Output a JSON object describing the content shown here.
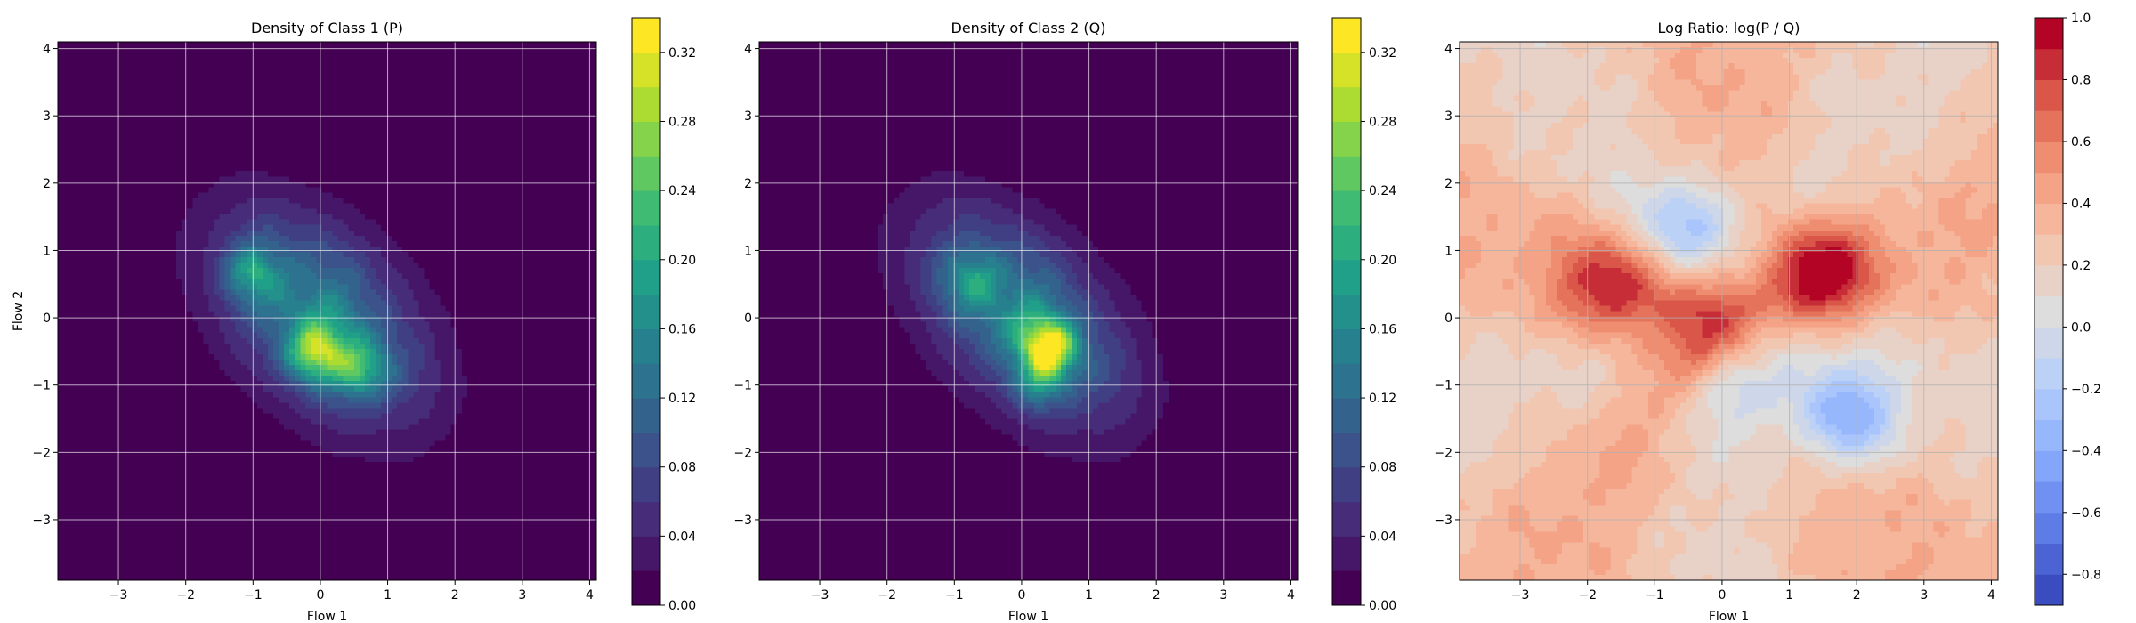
{
  "chart_data": [
    {
      "type": "heatmap",
      "title": "Density of Class 1 (P)",
      "xlabel": "Flow 1",
      "ylabel": "Flow 2",
      "xlim": [
        -3.9,
        4.1
      ],
      "ylim": [
        -3.9,
        4.1
      ],
      "xticks": [
        -3,
        -2,
        -1,
        0,
        1,
        2,
        3,
        4
      ],
      "yticks": [
        -3,
        -2,
        -1,
        0,
        1,
        2,
        3,
        4
      ],
      "grid": true,
      "colormap": "viridis",
      "colorbar": {
        "min": 0.0,
        "max": 0.34,
        "ticks": [
          0.0,
          0.04,
          0.08,
          0.12,
          0.16,
          0.2,
          0.24,
          0.28,
          0.32
        ],
        "tick_labels": [
          "0.00",
          "0.04",
          "0.08",
          "0.12",
          "0.16",
          "0.20",
          "0.24",
          "0.28",
          "0.32"
        ]
      },
      "distribution": {
        "center": [
          0.0,
          0.0
        ],
        "spread": [
          1.05,
          1.05
        ],
        "correlation": -0.45,
        "peaks": [
          {
            "x": -0.1,
            "y": -0.55,
            "value": 0.3
          },
          {
            "x": -1.0,
            "y": 0.7,
            "value": 0.22
          },
          {
            "x": 0.6,
            "y": -0.8,
            "value": 0.24
          }
        ]
      }
    },
    {
      "type": "heatmap",
      "title": "Density of Class 2 (Q)",
      "xlabel": "Flow 1",
      "ylabel": "",
      "xlim": [
        -3.9,
        4.1
      ],
      "ylim": [
        -3.9,
        4.1
      ],
      "xticks": [
        -3,
        -2,
        -1,
        0,
        1,
        2,
        3,
        4
      ],
      "yticks": [
        -3,
        -2,
        -1,
        0,
        1,
        2,
        3,
        4
      ],
      "grid": true,
      "colormap": "viridis",
      "colorbar": {
        "min": 0.0,
        "max": 0.34,
        "ticks": [
          0.0,
          0.04,
          0.08,
          0.12,
          0.16,
          0.2,
          0.24,
          0.28,
          0.32
        ],
        "tick_labels": [
          "0.00",
          "0.04",
          "0.08",
          "0.12",
          "0.16",
          "0.20",
          "0.24",
          "0.28",
          "0.32"
        ]
      },
      "distribution": {
        "center": [
          0.0,
          0.0
        ],
        "spread": [
          1.05,
          1.05
        ],
        "correlation": -0.5,
        "peaks": [
          {
            "x": 0.4,
            "y": -0.4,
            "value": 0.3
          },
          {
            "x": -0.7,
            "y": 0.6,
            "value": 0.2
          },
          {
            "x": 0.3,
            "y": -0.9,
            "value": 0.22
          }
        ]
      }
    },
    {
      "type": "heatmap",
      "title": "Log Ratio: log(P / Q)",
      "xlabel": "Flow 1",
      "ylabel": "",
      "xlim": [
        -3.9,
        4.1
      ],
      "ylim": [
        -3.9,
        4.1
      ],
      "xticks": [
        -3,
        -2,
        -1,
        0,
        1,
        2,
        3,
        4
      ],
      "yticks": [
        -3,
        -2,
        -1,
        0,
        1,
        2,
        3,
        4
      ],
      "grid": true,
      "colormap": "coolwarm",
      "colorbar": {
        "min": -0.9,
        "max": 1.0,
        "ticks": [
          -0.8,
          -0.6,
          -0.4,
          -0.2,
          0.0,
          0.2,
          0.4,
          0.6,
          0.8,
          1.0
        ],
        "tick_labels": [
          "−0.8",
          "−0.6",
          "−0.4",
          "−0.2",
          "0.0",
          "0.2",
          "0.4",
          "0.6",
          "0.8",
          "1.0"
        ]
      },
      "features": [
        {
          "x": 1.4,
          "y": 0.7,
          "value": 0.75
        },
        {
          "x": -0.2,
          "y": -0.2,
          "value": 0.7
        },
        {
          "x": -1.7,
          "y": 0.45,
          "value": 0.55
        },
        {
          "x": 1.8,
          "y": -1.5,
          "value": -0.7
        },
        {
          "x": -0.4,
          "y": 1.4,
          "value": -0.5
        },
        {
          "x": 0.3,
          "y": -0.9,
          "value": -0.45
        }
      ]
    }
  ]
}
